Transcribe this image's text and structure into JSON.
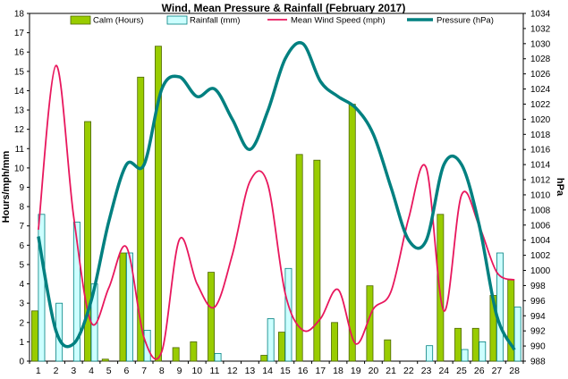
{
  "chart_data": {
    "type": "bar",
    "title": "Wind, Mean Pressure & Rainfall (February 2017)",
    "ylabel": "Hours/mph/mm",
    "y2label": "hPa",
    "ylim": [
      0,
      18
    ],
    "y2lim": [
      988,
      1034
    ],
    "categories": [
      "1",
      "2",
      "3",
      "4",
      "5",
      "6",
      "7",
      "8",
      "9",
      "10",
      "11",
      "12",
      "13",
      "14",
      "15",
      "16",
      "17",
      "18",
      "19",
      "20",
      "21",
      "22",
      "23",
      "24",
      "25",
      "26",
      "27",
      "28"
    ],
    "y_ticks": [
      "0",
      "1",
      "2",
      "3",
      "4",
      "5",
      "6",
      "7",
      "8",
      "9",
      "10",
      "11",
      "12",
      "13",
      "14",
      "15",
      "16",
      "17",
      "18"
    ],
    "y2_ticks": [
      "988",
      "990",
      "992",
      "994",
      "996",
      "998",
      "1000",
      "1002",
      "1004",
      "1006",
      "1008",
      "1010",
      "1012",
      "1014",
      "1016",
      "1018",
      "1020",
      "1022",
      "1024",
      "1026",
      "1028",
      "1030",
      "1032",
      "1034"
    ],
    "grid": false,
    "legend_position": "top",
    "series": [
      {
        "name": "Calm (Hours)",
        "type": "bar",
        "axis": "left",
        "color": "#99cc00",
        "stroke": "#4d6600",
        "values": [
          2.6,
          0,
          0,
          12.4,
          0.1,
          5.6,
          14.7,
          16.3,
          0.7,
          1.0,
          4.6,
          0,
          0,
          0.3,
          1.5,
          10.7,
          10.4,
          2.0,
          13.3,
          3.9,
          1.1,
          0,
          0,
          7.6,
          1.7,
          1.7,
          3.4,
          4.2
        ]
      },
      {
        "name": "Rainfall (mm)",
        "type": "bar",
        "axis": "left",
        "color": "#ccffff",
        "stroke": "#008080",
        "values": [
          7.6,
          3.0,
          7.2,
          4.0,
          0,
          5.6,
          1.6,
          0,
          0,
          0,
          0.4,
          0,
          0,
          2.2,
          4.8,
          0,
          0,
          0,
          0,
          0,
          0,
          0,
          0.8,
          0,
          0.6,
          1.0,
          5.6,
          2.8
        ]
      },
      {
        "name": "Mean Wind Speed (mph)",
        "type": "line",
        "axis": "left",
        "color": "#e8175d",
        "values": [
          6.8,
          15.3,
          7.5,
          2.0,
          3.8,
          5.9,
          1.2,
          0.5,
          6.3,
          4.0,
          2.8,
          5.5,
          9.3,
          9.2,
          3.5,
          1.6,
          2.2,
          3.7,
          0.9,
          2.7,
          3.6,
          7.4,
          10.0,
          2.6,
          8.6,
          7.0,
          4.6,
          4.2
        ]
      },
      {
        "name": "Pressure (hPa)",
        "type": "line",
        "axis": "right",
        "color": "#008080",
        "values": [
          1004.5,
          992.0,
          990.3,
          996.0,
          1006.5,
          1014.0,
          1014.0,
          1024.0,
          1025.6,
          1023.0,
          1024.0,
          1020.0,
          1016.0,
          1021.0,
          1028.0,
          1030.0,
          1025.0,
          1023.0,
          1021.5,
          1018.0,
          1011.0,
          1004.0,
          1004.0,
          1014.0,
          1014.0,
          1006.0,
          994.0,
          989.5
        ]
      }
    ]
  }
}
